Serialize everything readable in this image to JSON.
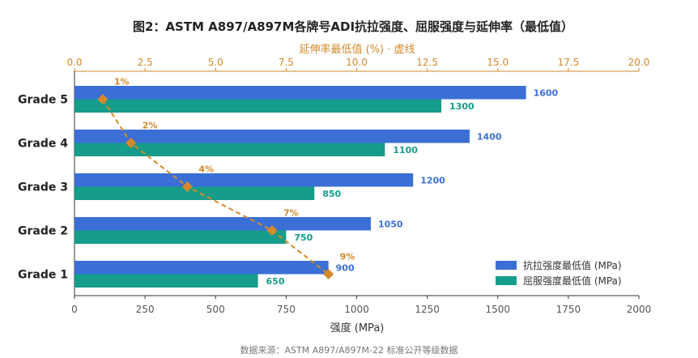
{
  "chart_data": {
    "type": "bar",
    "orientation": "horizontal",
    "title": "图2：ASTM A897/A897M各牌号ADI抗拉强度、屈服强度与延伸率（最低值）",
    "categories": [
      "Grade 5",
      "Grade 4",
      "Grade 3",
      "Grade 2",
      "Grade 1"
    ],
    "series": [
      {
        "name": "抗拉强度最低值 (MPa)",
        "values": [
          1600,
          1400,
          1200,
          1050,
          900
        ],
        "color": "#3b6fd6"
      },
      {
        "name": "屈服强度最低值 (MPa)",
        "values": [
          1300,
          1100,
          850,
          750,
          650
        ],
        "color": "#159c8a"
      }
    ],
    "xlabel": "强度 (MPa)",
    "xlim": [
      0,
      2000
    ],
    "xticks": [
      0,
      250,
      500,
      750,
      1000,
      1250,
      1500,
      1750,
      2000
    ],
    "secondary_axis": {
      "label": "延伸率最低值 (%) · 虚线",
      "lim": [
        0,
        20
      ],
      "ticks": [
        "0.0",
        "2.5",
        "5.0",
        "7.5",
        "10.0",
        "12.5",
        "15.0",
        "17.5",
        "20.0"
      ],
      "color": "#d38a2a"
    },
    "elongation": {
      "values": [
        1,
        2,
        4,
        7,
        9
      ],
      "labels": [
        "1%",
        "2%",
        "4%",
        "7%",
        "9%"
      ],
      "color": "#d38a2a"
    },
    "legend_position": "bottom-right",
    "grid": false
  },
  "footer": {
    "source": "数据来源：ASTM A897/A897M-22 标准公开等级数据"
  }
}
